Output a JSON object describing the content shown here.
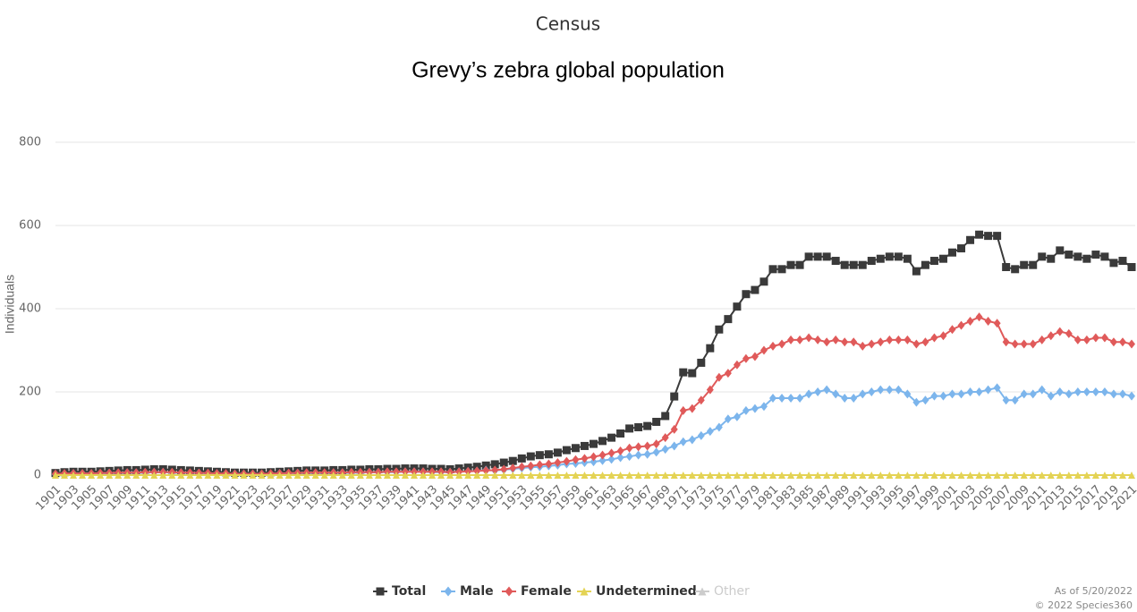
{
  "chart_data": {
    "type": "line",
    "title": "Census",
    "subtitle": "Grevy’s zebra global population",
    "y_label": "Individuals",
    "credits": [
      "As of 5/20/2022",
      "© 2022 Species360"
    ],
    "grid": true,
    "legend": "bottom",
    "ylim": [
      0,
      800
    ],
    "yticks": [
      0,
      200,
      400,
      600,
      800
    ],
    "categories": [
      "1901",
      null,
      "1903",
      null,
      "1905",
      null,
      "1907",
      null,
      "1909",
      null,
      "1911",
      null,
      "1913",
      null,
      "1915",
      null,
      "1917",
      null,
      "1919",
      null,
      "1921",
      null,
      "1923",
      null,
      "1925",
      null,
      "1927",
      null,
      "1929",
      null,
      "1931",
      null,
      "1933",
      null,
      "1935",
      null,
      "1937",
      null,
      "1939",
      null,
      "1941",
      null,
      "1943",
      null,
      "1945",
      null,
      "1947",
      null,
      "1949",
      null,
      "1951",
      null,
      "1953",
      null,
      "1955",
      null,
      "1957",
      null,
      "1959",
      null,
      "1961",
      null,
      "1963",
      null,
      "1965",
      null,
      "1967",
      null,
      "1969",
      null,
      "1971",
      null,
      "1973",
      null,
      "1975",
      null,
      "1977",
      null,
      "1979",
      null,
      "1981",
      null,
      "1983",
      null,
      "1985",
      null,
      "1987",
      null,
      "1989",
      null,
      "1991",
      null,
      "1993",
      null,
      "1995",
      null,
      "1997",
      null,
      "1999",
      null,
      "2001",
      null,
      "2003",
      null,
      "2005",
      null,
      "2007",
      null,
      "2009",
      null,
      "2011",
      null,
      "2013",
      null,
      "2015",
      null,
      "2017",
      null,
      "2019",
      null,
      "2021"
    ],
    "series": [
      {
        "name": "Total",
        "color": "#3a3a3a",
        "marker": "square",
        "values": [
          5,
          7,
          8,
          8,
          8,
          9,
          10,
          11,
          12,
          12,
          13,
          14,
          14,
          13,
          12,
          11,
          10,
          9,
          8,
          7,
          6,
          6,
          6,
          6,
          7,
          8,
          9,
          10,
          11,
          11,
          11,
          12,
          12,
          13,
          13,
          14,
          14,
          15,
          15,
          16,
          16,
          16,
          15,
          15,
          14,
          16,
          18,
          20,
          23,
          26,
          30,
          34,
          40,
          45,
          48,
          50,
          54,
          60,
          65,
          70,
          75,
          82,
          90,
          100,
          112,
          115,
          118,
          128,
          142,
          189,
          247,
          245,
          270,
          305,
          350,
          375,
          405,
          435,
          445,
          465,
          495,
          495,
          505,
          505,
          525,
          525,
          525,
          515,
          505,
          505,
          505,
          515,
          520,
          525,
          525,
          520,
          490,
          505,
          515,
          520,
          535,
          545,
          565,
          578,
          575,
          575,
          500,
          495,
          505,
          505,
          525,
          520,
          540,
          530,
          525,
          520,
          530,
          525,
          510,
          515,
          500
        ]
      },
      {
        "name": "Male",
        "color": "#7cb5ec",
        "marker": "diamond",
        "values": [
          2,
          3,
          4,
          4,
          4,
          4,
          5,
          5,
          6,
          6,
          6,
          7,
          7,
          6,
          6,
          5,
          5,
          4,
          4,
          3,
          3,
          3,
          3,
          3,
          3,
          4,
          4,
          5,
          5,
          5,
          5,
          6,
          6,
          6,
          6,
          7,
          7,
          7,
          7,
          8,
          8,
          8,
          7,
          7,
          7,
          8,
          9,
          10,
          12,
          11,
          13,
          15,
          17,
          19,
          20,
          22,
          24,
          27,
          28,
          30,
          32,
          35,
          38,
          42,
          45,
          48,
          50,
          55,
          62,
          70,
          80,
          85,
          95,
          105,
          115,
          135,
          140,
          155,
          160,
          165,
          185,
          185,
          185,
          185,
          195,
          200,
          205,
          195,
          185,
          185,
          195,
          200,
          205,
          205,
          205,
          195,
          175,
          180,
          190,
          190,
          195,
          195,
          200,
          200,
          205,
          210,
          180,
          180,
          195,
          195,
          205,
          190,
          200,
          195,
          200,
          200,
          200,
          200,
          195,
          195,
          190
        ]
      },
      {
        "name": "Female",
        "color": "#e05a5a",
        "marker": "diamond",
        "values": [
          3,
          4,
          4,
          4,
          4,
          5,
          5,
          6,
          6,
          6,
          7,
          7,
          7,
          7,
          6,
          6,
          5,
          5,
          4,
          4,
          3,
          3,
          3,
          3,
          4,
          4,
          5,
          5,
          6,
          6,
          6,
          6,
          6,
          7,
          7,
          7,
          7,
          8,
          8,
          8,
          8,
          8,
          8,
          8,
          7,
          8,
          9,
          10,
          11,
          12,
          14,
          17,
          20,
          22,
          25,
          27,
          30,
          33,
          37,
          40,
          44,
          48,
          53,
          58,
          65,
          68,
          70,
          75,
          90,
          110,
          155,
          160,
          180,
          205,
          235,
          245,
          265,
          280,
          285,
          300,
          310,
          315,
          325,
          325,
          330,
          325,
          320,
          325,
          320,
          320,
          310,
          315,
          320,
          325,
          325,
          325,
          315,
          320,
          330,
          335,
          350,
          360,
          370,
          380,
          370,
          365,
          320,
          315,
          315,
          315,
          325,
          335,
          345,
          340,
          325,
          325,
          330,
          330,
          320,
          320,
          315
        ]
      },
      {
        "name": "Undetermined",
        "color": "#e4d354",
        "marker": "triangle",
        "values": [
          0,
          0,
          0,
          0,
          0,
          0,
          0,
          0,
          0,
          0,
          0,
          0,
          0,
          0,
          0,
          0,
          0,
          0,
          0,
          0,
          0,
          0,
          0,
          0,
          0,
          0,
          0,
          0,
          0,
          0,
          0,
          0,
          0,
          0,
          0,
          0,
          0,
          0,
          0,
          0,
          0,
          0,
          0,
          0,
          0,
          0,
          0,
          0,
          0,
          0,
          0,
          0,
          0,
          0,
          0,
          0,
          0,
          0,
          0,
          0,
          0,
          0,
          0,
          0,
          0,
          0,
          0,
          0,
          0,
          0,
          0,
          0,
          0,
          0,
          0,
          0,
          0,
          0,
          0,
          0,
          0,
          0,
          0,
          0,
          0,
          0,
          0,
          0,
          0,
          0,
          0,
          0,
          0,
          0,
          0,
          0,
          0,
          0,
          0,
          0,
          0,
          0,
          0,
          0,
          0,
          0,
          0,
          0,
          0,
          0,
          0,
          0,
          0,
          0,
          0,
          0,
          0,
          0,
          0,
          0,
          0
        ]
      },
      {
        "name": "Other",
        "color": "#cccccc",
        "marker": "triangle",
        "hidden": true
      }
    ]
  }
}
